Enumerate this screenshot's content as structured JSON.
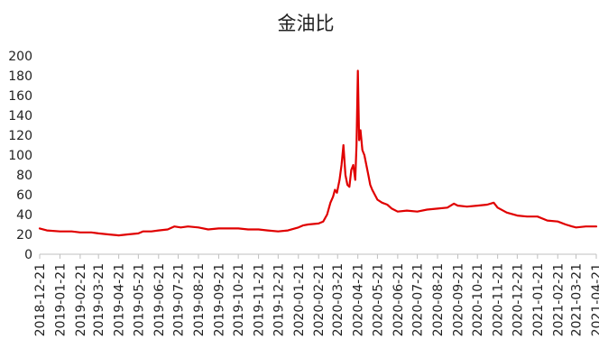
{
  "chart_data": {
    "type": "line",
    "title": "金油比",
    "xlabel": "",
    "ylabel": "",
    "ylim": [
      0,
      200
    ],
    "yticks": [
      0,
      20,
      40,
      60,
      80,
      100,
      120,
      140,
      160,
      180,
      200
    ],
    "xlim": [
      "2018-12-21",
      "2021-04-21"
    ],
    "xtick_labels": [
      "2018-12-21",
      "2019-01-21",
      "2019-02-21",
      "2019-03-21",
      "2019-04-21",
      "2019-05-21",
      "2019-06-21",
      "2019-07-21",
      "2019-08-21",
      "2019-09-21",
      "2019-10-21",
      "2019-11-21",
      "2019-12-21",
      "2020-01-21",
      "2020-02-21",
      "2020-03-21",
      "2020-04-21",
      "2020-05-21",
      "2020-06-21",
      "2020-07-21",
      "2020-08-21",
      "2020-09-21",
      "2020-10-21",
      "2020-11-21",
      "2020-12-21",
      "2021-01-21",
      "2021-02-21",
      "2021-03-21",
      "2021-04-21"
    ],
    "grid": false,
    "legend": "none",
    "series": [
      {
        "color": "#e00000",
        "points": [
          [
            "2018-12-21",
            26
          ],
          [
            "2019-01-01",
            24
          ],
          [
            "2019-01-21",
            23
          ],
          [
            "2019-02-08",
            23
          ],
          [
            "2019-02-21",
            22
          ],
          [
            "2019-03-10",
            22
          ],
          [
            "2019-03-21",
            21
          ],
          [
            "2019-04-05",
            20
          ],
          [
            "2019-04-21",
            19
          ],
          [
            "2019-05-05",
            20
          ],
          [
            "2019-05-21",
            21
          ],
          [
            "2019-05-28",
            23
          ],
          [
            "2019-06-10",
            23
          ],
          [
            "2019-06-21",
            24
          ],
          [
            "2019-07-05",
            25
          ],
          [
            "2019-07-15",
            28
          ],
          [
            "2019-07-25",
            27
          ],
          [
            "2019-08-05",
            28
          ],
          [
            "2019-08-21",
            27
          ],
          [
            "2019-09-05",
            25
          ],
          [
            "2019-09-21",
            26
          ],
          [
            "2019-10-05",
            26
          ],
          [
            "2019-10-21",
            26
          ],
          [
            "2019-11-05",
            25
          ],
          [
            "2019-11-21",
            25
          ],
          [
            "2019-12-05",
            24
          ],
          [
            "2019-12-21",
            23
          ],
          [
            "2020-01-05",
            24
          ],
          [
            "2020-01-21",
            27
          ],
          [
            "2020-01-28",
            29
          ],
          [
            "2020-02-05",
            30
          ],
          [
            "2020-02-21",
            31
          ],
          [
            "2020-02-28",
            33
          ],
          [
            "2020-03-05",
            40
          ],
          [
            "2020-03-10",
            52
          ],
          [
            "2020-03-14",
            58
          ],
          [
            "2020-03-17",
            65
          ],
          [
            "2020-03-20",
            62
          ],
          [
            "2020-03-24",
            75
          ],
          [
            "2020-03-27",
            90
          ],
          [
            "2020-03-30",
            110
          ],
          [
            "2020-04-02",
            80
          ],
          [
            "2020-04-05",
            70
          ],
          [
            "2020-04-08",
            68
          ],
          [
            "2020-04-11",
            85
          ],
          [
            "2020-04-14",
            90
          ],
          [
            "2020-04-17",
            75
          ],
          [
            "2020-04-19",
            110
          ],
          [
            "2020-04-21",
            185
          ],
          [
            "2020-04-23",
            115
          ],
          [
            "2020-04-25",
            125
          ],
          [
            "2020-04-28",
            105
          ],
          [
            "2020-05-01",
            100
          ],
          [
            "2020-05-04",
            90
          ],
          [
            "2020-05-07",
            80
          ],
          [
            "2020-05-10",
            70
          ],
          [
            "2020-05-13",
            65
          ],
          [
            "2020-05-21",
            55
          ],
          [
            "2020-05-28",
            52
          ],
          [
            "2020-06-05",
            50
          ],
          [
            "2020-06-12",
            46
          ],
          [
            "2020-06-21",
            43
          ],
          [
            "2020-07-05",
            44
          ],
          [
            "2020-07-21",
            43
          ],
          [
            "2020-08-05",
            45
          ],
          [
            "2020-08-21",
            46
          ],
          [
            "2020-09-05",
            47
          ],
          [
            "2020-09-15",
            51
          ],
          [
            "2020-09-21",
            49
          ],
          [
            "2020-10-05",
            48
          ],
          [
            "2020-10-21",
            49
          ],
          [
            "2020-11-05",
            50
          ],
          [
            "2020-11-15",
            52
          ],
          [
            "2020-11-21",
            47
          ],
          [
            "2020-12-05",
            42
          ],
          [
            "2020-12-21",
            39
          ],
          [
            "2021-01-05",
            38
          ],
          [
            "2021-01-21",
            38
          ],
          [
            "2021-02-05",
            34
          ],
          [
            "2021-02-21",
            33
          ],
          [
            "2021-03-05",
            30
          ],
          [
            "2021-03-15",
            28
          ],
          [
            "2021-03-21",
            27
          ],
          [
            "2021-04-05",
            28
          ],
          [
            "2021-04-21",
            28
          ]
        ]
      }
    ]
  }
}
